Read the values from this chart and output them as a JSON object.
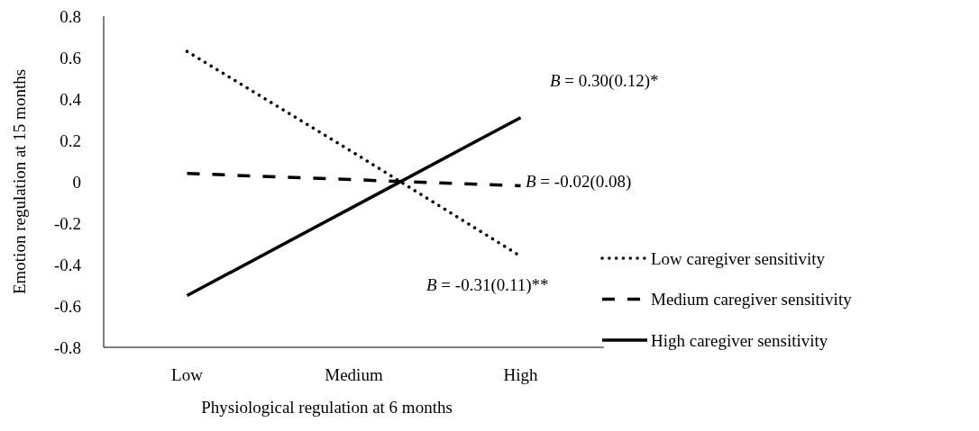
{
  "chart_data": {
    "type": "line",
    "xlabel": "Physiological regulation at 6 months",
    "ylabel": "Emotion regulation at 15 months",
    "categories": [
      "Low",
      "Medium",
      "High"
    ],
    "series": [
      {
        "name": "Low caregiver sensitivity",
        "color": "#000000",
        "line_style": "dotted",
        "values": [
          0.63,
          0.14,
          -0.36
        ]
      },
      {
        "name": "Medium caregiver sensitivity",
        "color": "#000000",
        "line_style": "dashed",
        "values": [
          0.04,
          0.01,
          -0.02
        ]
      },
      {
        "name": "High caregiver sensitivity",
        "color": "#000000",
        "line_style": "solid",
        "values": [
          -0.55,
          -0.12,
          0.31
        ]
      }
    ],
    "ylim": [
      -0.8,
      0.8
    ],
    "yticks": [
      -0.8,
      -0.6,
      -0.4,
      -0.2,
      0,
      0.2,
      0.4,
      0.6,
      0.8
    ],
    "grid": false,
    "legend": "right",
    "marker": "none",
    "annotations": [
      "B = 0.30(0.12)*",
      "B = -0.02(0.08)",
      "B = -0.31(0.11)**"
    ]
  }
}
